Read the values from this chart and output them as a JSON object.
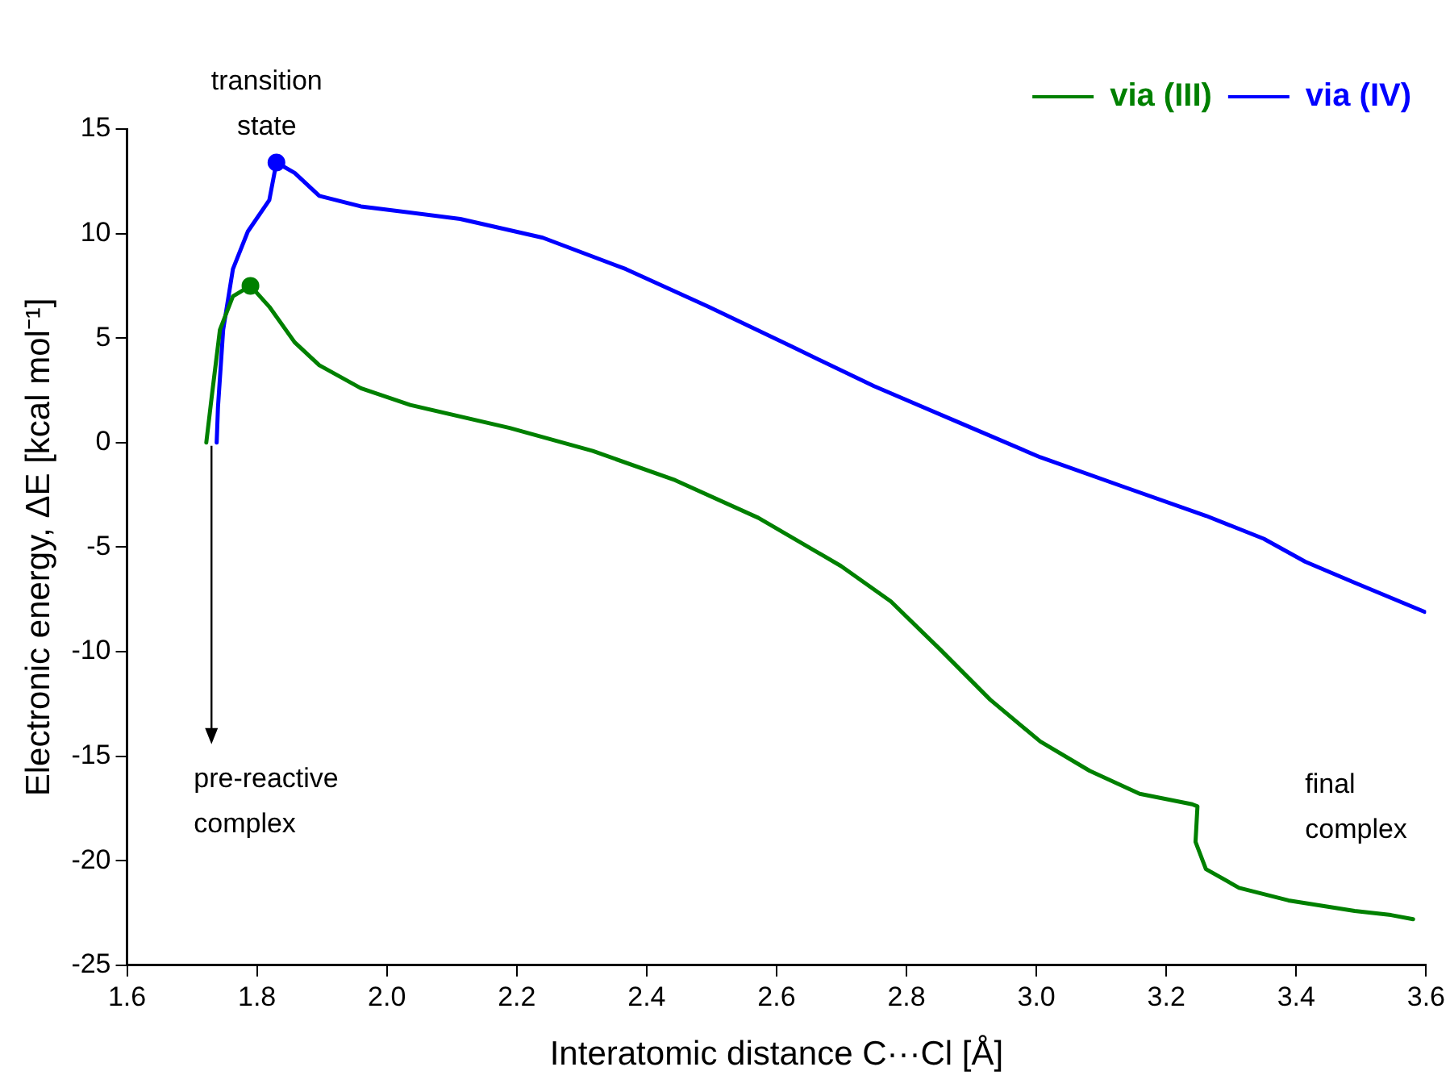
{
  "chart_data": {
    "type": "line",
    "xlabel": "Interatomic distance C···Cl [Å]",
    "ylabel": "Electronic energy, ΔE [kcal mol⁻¹]",
    "xlim": [
      1.6,
      3.6
    ],
    "xticks": [
      1.6,
      1.8,
      {
        "value": 2,
        "label": "2.0"
      },
      2.2,
      2.4,
      2.6,
      2.8,
      {
        "value": 3,
        "label": "3.0"
      },
      3.2,
      3.4,
      3.6
    ],
    "ylim": [
      -25,
      15
    ],
    "yticks": [
      -25,
      -20,
      -15,
      -10,
      -5,
      0,
      5,
      10,
      15
    ],
    "grid": false,
    "legend": "top right",
    "line_style": "solid",
    "annotations": [
      {
        "text": "transition state",
        "x": 1.83,
        "y": 13.4
      },
      {
        "text": "pre-reactive complex",
        "x": 1.73,
        "y": 0
      },
      {
        "text": "final complex",
        "x": 3.58,
        "y": -22.8
      }
    ],
    "series": [
      {
        "name": "via (III)",
        "color": "#008000",
        "x": [
          1.722,
          1.73,
          1.743,
          1.763,
          1.79,
          1.819,
          1.858,
          1.896,
          1.96,
          2.036,
          2.189,
          2.317,
          2.444,
          2.572,
          2.699,
          2.776,
          2.852,
          2.929,
          3.006,
          3.082,
          3.159,
          3.24,
          3.248,
          3.245,
          3.261,
          3.312,
          3.388,
          3.49,
          3.546,
          3.58
        ],
        "values": [
          0,
          2.1,
          5.4,
          7,
          7.5,
          6.5,
          4.8,
          3.7,
          2.6,
          1.8,
          0.7,
          -0.4,
          -1.8,
          -3.6,
          -5.9,
          -7.6,
          -9.9,
          -12.3,
          -14.3,
          -15.7,
          -16.8,
          -17.3,
          -17.4,
          -19.1,
          -20.4,
          -21.3,
          -21.9,
          -22.4,
          -22.6,
          -22.8
        ]
      },
      {
        "name": "via (IV)",
        "color": "#0000ff",
        "x": [
          1.738,
          1.74,
          1.748,
          1.763,
          1.786,
          1.819,
          1.83,
          1.858,
          1.896,
          1.96,
          2.113,
          2.24,
          2.368,
          2.495,
          2.623,
          2.75,
          2.878,
          3.006,
          3.133,
          3.261,
          3.35,
          3.414,
          3.49,
          3.598
        ],
        "values": [
          0,
          1.7,
          5.4,
          8.3,
          10.1,
          11.6,
          13.4,
          12.9,
          11.8,
          11.3,
          10.7,
          9.8,
          8.3,
          6.5,
          4.6,
          2.7,
          1,
          -0.7,
          -2.1,
          -3.5,
          -4.6,
          -5.7,
          -6.7,
          -8.1
        ]
      },
      {
        "type": "scatter",
        "color": "#008000",
        "marker": "circle",
        "x": [
          1.79
        ],
        "values": [
          7.5
        ]
      },
      {
        "type": "scatter",
        "color": "#0000ff",
        "marker": "circle",
        "x": [
          1.83
        ],
        "values": [
          13.4
        ]
      }
    ]
  }
}
